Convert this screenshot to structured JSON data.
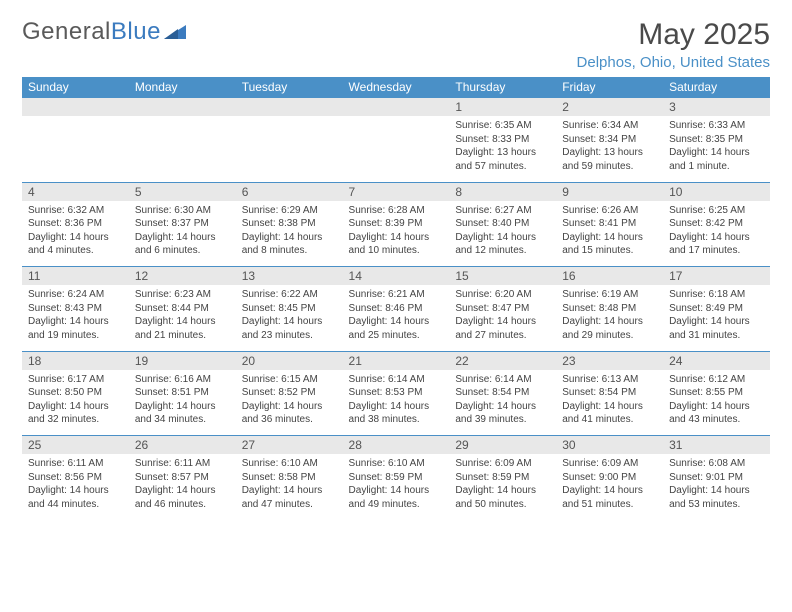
{
  "brand": {
    "part1": "General",
    "part2": "Blue"
  },
  "title": "May 2025",
  "location": "Delphos, Ohio, United States",
  "colors": {
    "header_bg": "#4a90c7",
    "header_text": "#ffffff",
    "daynum_bg": "#e8e8e8",
    "border": "#4a90c7",
    "location_text": "#4a90c7",
    "title_text": "#4a4a4a",
    "body_text": "#444444"
  },
  "dayNames": [
    "Sunday",
    "Monday",
    "Tuesday",
    "Wednesday",
    "Thursday",
    "Friday",
    "Saturday"
  ],
  "weeks": [
    [
      null,
      null,
      null,
      null,
      {
        "n": "1",
        "sunrise": "6:35 AM",
        "sunset": "8:33 PM",
        "daylight": "13 hours and 57 minutes."
      },
      {
        "n": "2",
        "sunrise": "6:34 AM",
        "sunset": "8:34 PM",
        "daylight": "13 hours and 59 minutes."
      },
      {
        "n": "3",
        "sunrise": "6:33 AM",
        "sunset": "8:35 PM",
        "daylight": "14 hours and 1 minute."
      }
    ],
    [
      {
        "n": "4",
        "sunrise": "6:32 AM",
        "sunset": "8:36 PM",
        "daylight": "14 hours and 4 minutes."
      },
      {
        "n": "5",
        "sunrise": "6:30 AM",
        "sunset": "8:37 PM",
        "daylight": "14 hours and 6 minutes."
      },
      {
        "n": "6",
        "sunrise": "6:29 AM",
        "sunset": "8:38 PM",
        "daylight": "14 hours and 8 minutes."
      },
      {
        "n": "7",
        "sunrise": "6:28 AM",
        "sunset": "8:39 PM",
        "daylight": "14 hours and 10 minutes."
      },
      {
        "n": "8",
        "sunrise": "6:27 AM",
        "sunset": "8:40 PM",
        "daylight": "14 hours and 12 minutes."
      },
      {
        "n": "9",
        "sunrise": "6:26 AM",
        "sunset": "8:41 PM",
        "daylight": "14 hours and 15 minutes."
      },
      {
        "n": "10",
        "sunrise": "6:25 AM",
        "sunset": "8:42 PM",
        "daylight": "14 hours and 17 minutes."
      }
    ],
    [
      {
        "n": "11",
        "sunrise": "6:24 AM",
        "sunset": "8:43 PM",
        "daylight": "14 hours and 19 minutes."
      },
      {
        "n": "12",
        "sunrise": "6:23 AM",
        "sunset": "8:44 PM",
        "daylight": "14 hours and 21 minutes."
      },
      {
        "n": "13",
        "sunrise": "6:22 AM",
        "sunset": "8:45 PM",
        "daylight": "14 hours and 23 minutes."
      },
      {
        "n": "14",
        "sunrise": "6:21 AM",
        "sunset": "8:46 PM",
        "daylight": "14 hours and 25 minutes."
      },
      {
        "n": "15",
        "sunrise": "6:20 AM",
        "sunset": "8:47 PM",
        "daylight": "14 hours and 27 minutes."
      },
      {
        "n": "16",
        "sunrise": "6:19 AM",
        "sunset": "8:48 PM",
        "daylight": "14 hours and 29 minutes."
      },
      {
        "n": "17",
        "sunrise": "6:18 AM",
        "sunset": "8:49 PM",
        "daylight": "14 hours and 31 minutes."
      }
    ],
    [
      {
        "n": "18",
        "sunrise": "6:17 AM",
        "sunset": "8:50 PM",
        "daylight": "14 hours and 32 minutes."
      },
      {
        "n": "19",
        "sunrise": "6:16 AM",
        "sunset": "8:51 PM",
        "daylight": "14 hours and 34 minutes."
      },
      {
        "n": "20",
        "sunrise": "6:15 AM",
        "sunset": "8:52 PM",
        "daylight": "14 hours and 36 minutes."
      },
      {
        "n": "21",
        "sunrise": "6:14 AM",
        "sunset": "8:53 PM",
        "daylight": "14 hours and 38 minutes."
      },
      {
        "n": "22",
        "sunrise": "6:14 AM",
        "sunset": "8:54 PM",
        "daylight": "14 hours and 39 minutes."
      },
      {
        "n": "23",
        "sunrise": "6:13 AM",
        "sunset": "8:54 PM",
        "daylight": "14 hours and 41 minutes."
      },
      {
        "n": "24",
        "sunrise": "6:12 AM",
        "sunset": "8:55 PM",
        "daylight": "14 hours and 43 minutes."
      }
    ],
    [
      {
        "n": "25",
        "sunrise": "6:11 AM",
        "sunset": "8:56 PM",
        "daylight": "14 hours and 44 minutes."
      },
      {
        "n": "26",
        "sunrise": "6:11 AM",
        "sunset": "8:57 PM",
        "daylight": "14 hours and 46 minutes."
      },
      {
        "n": "27",
        "sunrise": "6:10 AM",
        "sunset": "8:58 PM",
        "daylight": "14 hours and 47 minutes."
      },
      {
        "n": "28",
        "sunrise": "6:10 AM",
        "sunset": "8:59 PM",
        "daylight": "14 hours and 49 minutes."
      },
      {
        "n": "29",
        "sunrise": "6:09 AM",
        "sunset": "8:59 PM",
        "daylight": "14 hours and 50 minutes."
      },
      {
        "n": "30",
        "sunrise": "6:09 AM",
        "sunset": "9:00 PM",
        "daylight": "14 hours and 51 minutes."
      },
      {
        "n": "31",
        "sunrise": "6:08 AM",
        "sunset": "9:01 PM",
        "daylight": "14 hours and 53 minutes."
      }
    ]
  ],
  "labels": {
    "sunrise": "Sunrise:",
    "sunset": "Sunset:",
    "daylight": "Daylight:"
  }
}
